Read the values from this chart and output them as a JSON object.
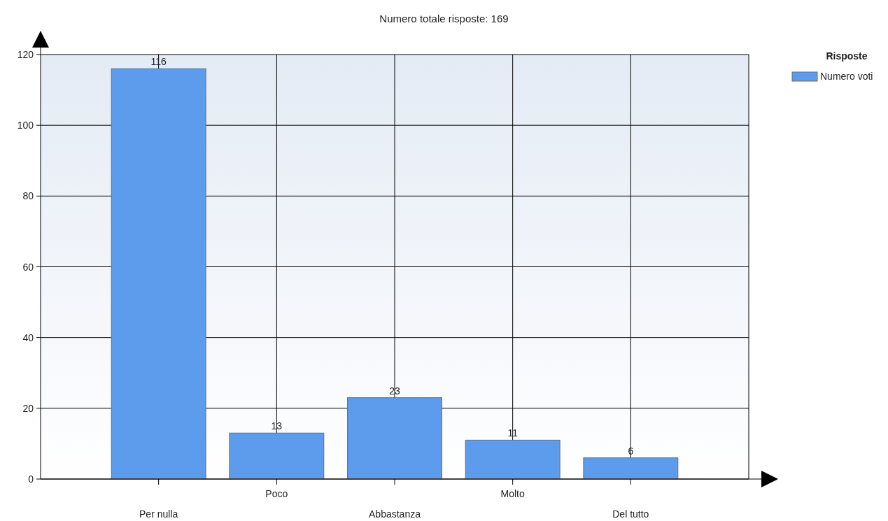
{
  "chart_data": {
    "type": "bar",
    "title": "Numero totale risposte: 169",
    "categories": [
      "Per nulla",
      "Poco",
      "Abbastanza",
      "Molto",
      "Del tutto"
    ],
    "series": [
      {
        "name": "Numero voti",
        "color": "#5d9cec",
        "values": [
          116,
          13,
          23,
          11,
          6
        ]
      }
    ],
    "ylim": [
      0,
      120
    ],
    "yticks": [
      0,
      20,
      40,
      60,
      80,
      100,
      120
    ],
    "grid": true,
    "legend": "top right",
    "legend_title": "Risposte",
    "data_labels": true
  }
}
